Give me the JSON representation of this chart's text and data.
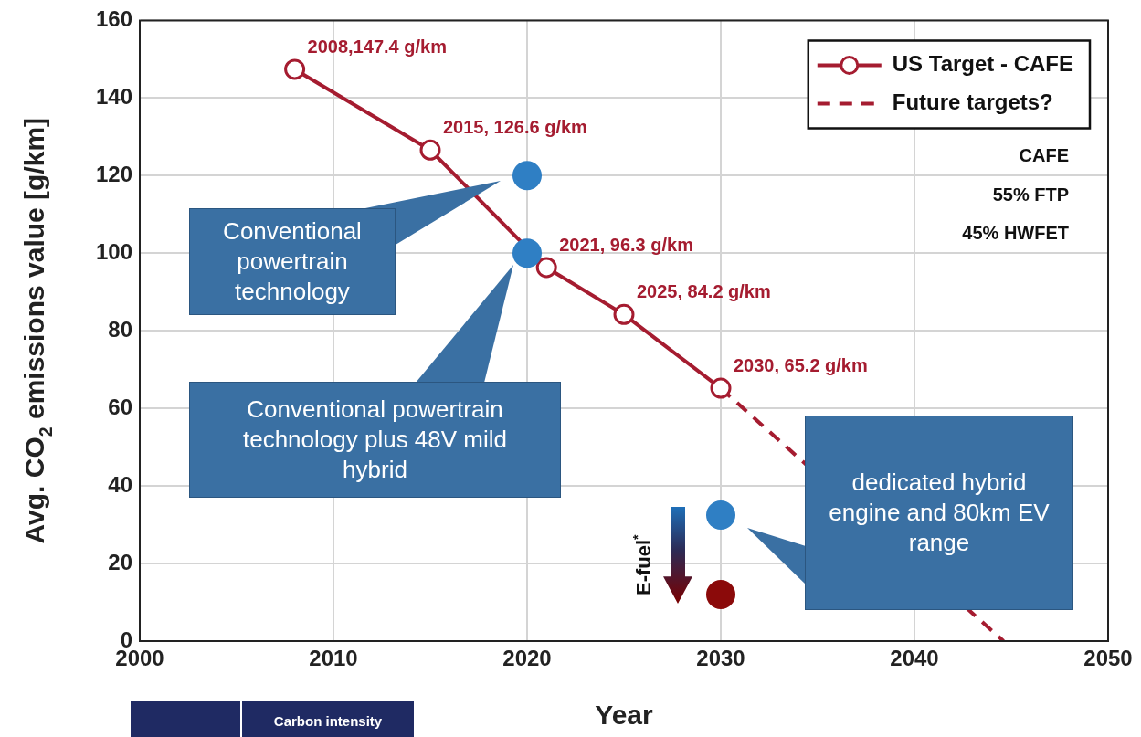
{
  "chart_data": {
    "type": "line",
    "xlabel": "Year",
    "ylabel": "Avg. CO$_{2}$ emissions value [g/km]",
    "xlim": [
      2000,
      2050
    ],
    "xticks": [
      2000,
      2010,
      2020,
      2030,
      2040,
      2050
    ],
    "ylim": [
      0,
      160
    ],
    "yticks": [
      0,
      20,
      40,
      60,
      80,
      100,
      120,
      140,
      160
    ],
    "grid": true,
    "legend": "top right",
    "series": [
      {
        "name": "US Target - CAFE",
        "color": "#a51c30",
        "marker": "circle",
        "line_style": "solid",
        "x": [
          2008,
          2015,
          2021,
          2025,
          2030
        ],
        "values": [
          147.4,
          126.6,
          96.3,
          84.2,
          65.2
        ],
        "value_labels": [
          "2008,147.4 g/km",
          "2015, 126.6 g/km",
          "2021, 96.3 g/km",
          "2025, 84.2 g/km",
          "2030, 65.2 g/km"
        ]
      },
      {
        "name": "Future targets?",
        "color": "#a51c30",
        "marker": "none",
        "line_style": "dashed",
        "x": [
          2030,
          2044.6
        ],
        "values": [
          65.2,
          0
        ]
      },
      {
        "type": "scatter",
        "color": "#2f7fc4",
        "marker": "circle",
        "x": [
          2020,
          2020,
          2030
        ],
        "values": [
          120,
          100,
          32.5
        ]
      },
      {
        "type": "scatter",
        "color": "#8b0a0a",
        "marker": "circle",
        "x": [
          2030
        ],
        "values": [
          12
        ]
      }
    ],
    "annotations": [
      "Conventional powertrain technology",
      "Conventional powertrain technology plus 48V mild hybrid",
      "dedicated hybrid engine and 80km EV range",
      "CAFE",
      "55% FTP",
      "45% HWFET",
      "E-fuel$^{*}$",
      "Carbon intensity"
    ]
  }
}
